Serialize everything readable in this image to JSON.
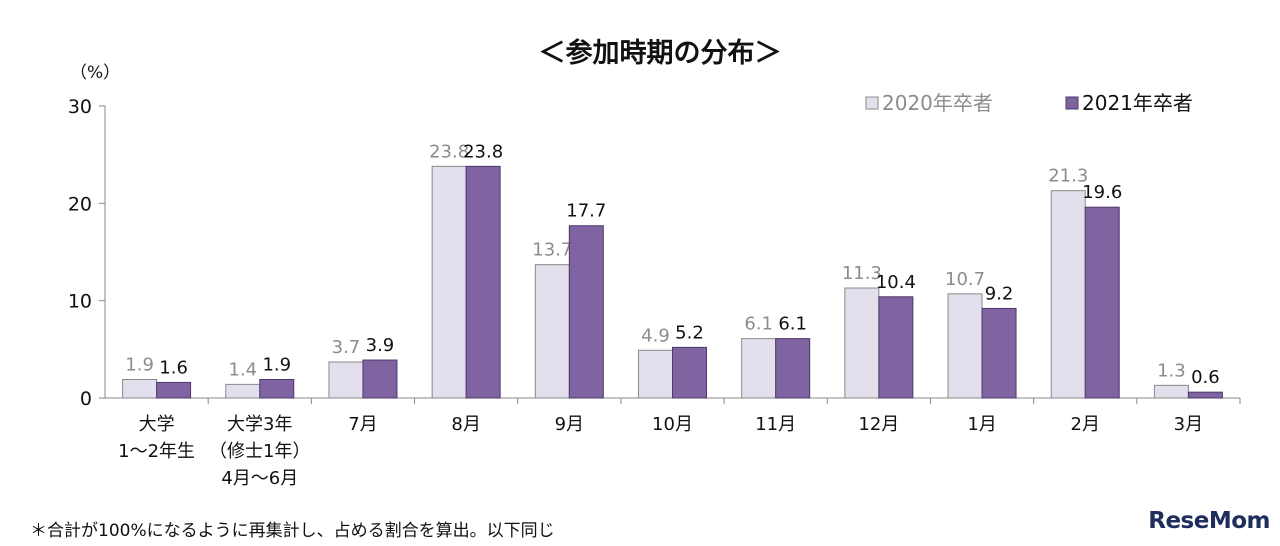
{
  "footnote": "＊合計が100%になるように再集計し、占める割合を算出。以下同じ",
  "logo": "ReseMom",
  "chart_data": {
    "type": "bar",
    "title": "＜参加時期の分布＞",
    "ylabel": "（%）",
    "ylim": [
      0,
      30
    ],
    "yticks": [
      0,
      10,
      20,
      30
    ],
    "legend_position": "top-right",
    "categories": [
      [
        "大学",
        "1～2年生"
      ],
      [
        "大学3年",
        "（修士1年）",
        "4月～6月"
      ],
      [
        "7月"
      ],
      [
        "8月"
      ],
      [
        "9月"
      ],
      [
        "10月"
      ],
      [
        "11月"
      ],
      [
        "12月"
      ],
      [
        "1月"
      ],
      [
        "2月"
      ],
      [
        "3月"
      ]
    ],
    "series": [
      {
        "name": "2020年卒者",
        "color": "#e4dfec",
        "stroke": "#8a8a8a",
        "label_color": "#8c8c8c",
        "values": [
          1.9,
          1.4,
          3.7,
          23.8,
          13.7,
          4.9,
          6.1,
          11.3,
          10.7,
          21.3,
          1.3
        ]
      },
      {
        "name": "2021年卒者",
        "color": "#8064a2",
        "stroke": "#4d3a6b",
        "label_color": "#111111",
        "values": [
          1.6,
          1.9,
          3.9,
          23.8,
          17.7,
          5.2,
          6.1,
          10.4,
          9.2,
          19.6,
          0.6
        ]
      }
    ]
  }
}
